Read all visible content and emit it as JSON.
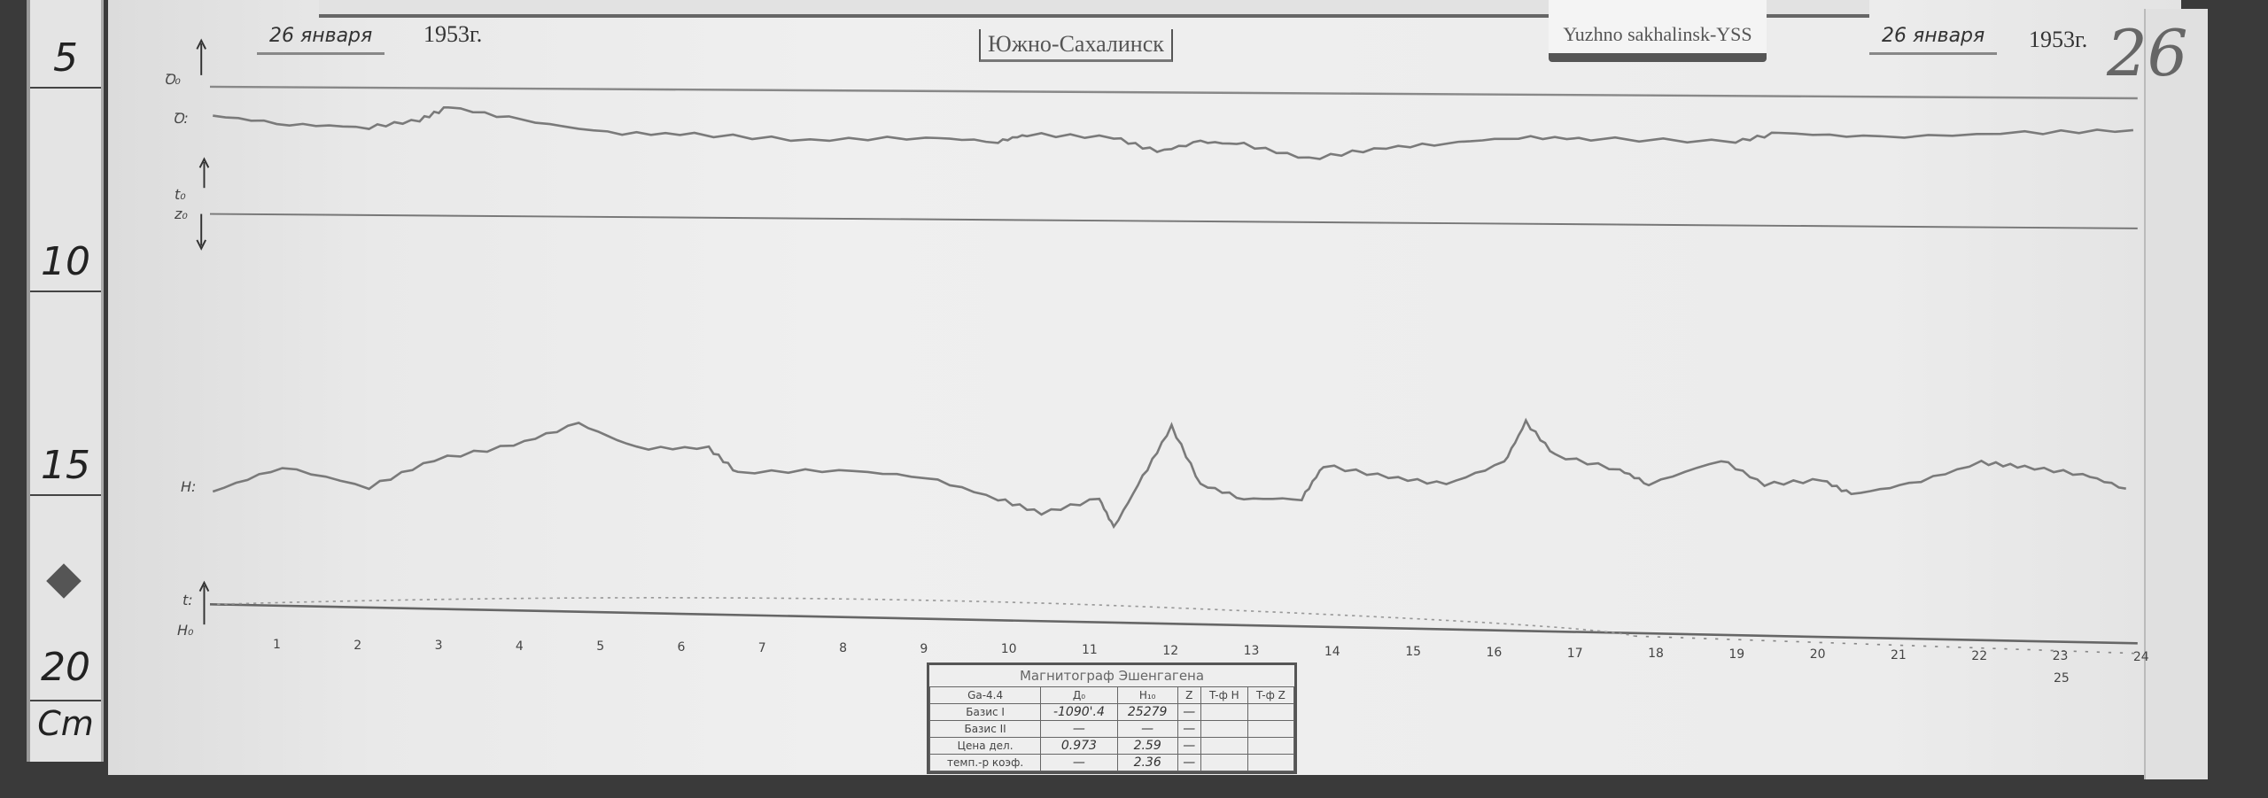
{
  "ruler": {
    "marks": [
      "5",
      "10",
      "15",
      "20"
    ],
    "unit": "Cm"
  },
  "header": {
    "date_left": "26 января",
    "year_left": "1953г.",
    "station": "Южно-Сахалинск",
    "label": "Yuzhno sakhalinsk-YSS",
    "date_right": "26 января",
    "year_right": "1953г.",
    "day_number": "26"
  },
  "trace_labels": {
    "d0": "Ꝺ₀",
    "d": "Ꝺ:",
    "t0": "t₀",
    "z0": "z₀",
    "h": "H:",
    "t": "t:",
    "h0": "H₀"
  },
  "hours": [
    "1",
    "2",
    "3",
    "4",
    "5",
    "6",
    "7",
    "8",
    "9",
    "10",
    "11",
    "12",
    "13",
    "14",
    "15",
    "16",
    "17",
    "18",
    "19",
    "20",
    "21",
    "22",
    "23",
    "24"
  ],
  "extra_hour": "25",
  "table": {
    "title": "Магнитограф Эшенгагена",
    "header": [
      "Ga-4.4",
      "Д₀",
      "H₁₀",
      "Z",
      "T-ф H",
      "T-ф Z"
    ],
    "rows": [
      [
        "Базис I",
        "-1090'.4",
        "25279",
        "—",
        "",
        ""
      ],
      [
        "Базис II",
        "—",
        "—",
        "—",
        "",
        ""
      ],
      [
        "Цена дел.",
        "0.973",
        "2.59",
        "—",
        "",
        ""
      ],
      [
        "темп.-р коэф.",
        "—",
        "2.36",
        "—",
        "",
        ""
      ]
    ]
  },
  "colors": {
    "paper": "#ececec",
    "trace": "#7a7a7a",
    "ink": "#333333"
  }
}
